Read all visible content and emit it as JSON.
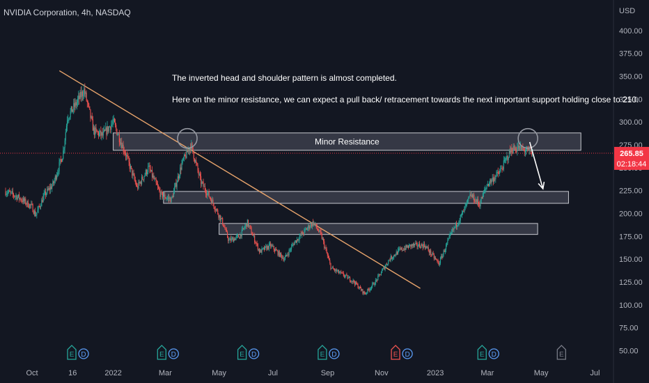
{
  "header": {
    "title": "NVIDIA Corporation, 4h, NASDAQ",
    "currency": "USD"
  },
  "price_label": {
    "value": "265.85",
    "countdown": "02:18:44"
  },
  "annotations": {
    "line1": "The inverted head and shoulder pattern is almost completed.",
    "line2": "Here on the minor resistance, we can expect a pull back/ retracement towards the next important support holding close to 210.",
    "zone_label": "Minor Resistance"
  },
  "event_markers": [
    {
      "date": "2021-11-15",
      "icons": [
        "E",
        "D"
      ],
      "color": "#26a69a"
    },
    {
      "date": "2022-02-25",
      "icons": [
        "E",
        "D"
      ],
      "color": "#26a69a"
    },
    {
      "date": "2022-05-27",
      "icons": [
        "E",
        "D"
      ],
      "color": "#26a69a"
    },
    {
      "date": "2022-08-26",
      "icons": [
        "E",
        "D"
      ],
      "color": "#26a69a"
    },
    {
      "date": "2022-11-17",
      "icons": [
        "E",
        "D"
      ],
      "color": "#ef5350"
    },
    {
      "date": "2023-02-23",
      "icons": [
        "E",
        "D"
      ],
      "color": "#26a69a"
    },
    {
      "date": "2023-05-24",
      "icons": [
        "E"
      ],
      "color": "#787b86"
    }
  ],
  "colors": {
    "background": "#131722",
    "up": "#26a69a",
    "down": "#ef5350",
    "trendline": "#e8a46c",
    "zone_fill": "#4a4e5a",
    "text": "#d1d4dc",
    "axis_text": "#b2b5be",
    "price_tag": "#f23645"
  },
  "chart_data": {
    "type": "candlestick",
    "y_axis_ticks": [
      "400.00",
      "375.00",
      "350.00",
      "325.00",
      "300.00",
      "275.00",
      "250.00",
      "225.00",
      "200.00",
      "175.00",
      "150.00",
      "125.00",
      "100.00",
      "75.00",
      "50.00"
    ],
    "x_axis_ticks": [
      {
        "label": "Oct",
        "date": "2021-10-01"
      },
      {
        "label": "16",
        "date": "2021-11-16"
      },
      {
        "label": "2022",
        "date": "2022-01-01"
      },
      {
        "label": "Mar",
        "date": "2022-03-01"
      },
      {
        "label": "May",
        "date": "2022-05-01"
      },
      {
        "label": "Jul",
        "date": "2022-07-01"
      },
      {
        "label": "Sep",
        "date": "2022-09-01"
      },
      {
        "label": "Nov",
        "date": "2022-11-01"
      },
      {
        "label": "2023",
        "date": "2023-01-01"
      },
      {
        "label": "Mar",
        "date": "2023-03-01"
      },
      {
        "label": "May",
        "date": "2023-05-01"
      },
      {
        "label": "Jul",
        "date": "2023-07-01"
      }
    ],
    "ylim": [
      45,
      412
    ],
    "x_range": [
      "2021-09-01",
      "2023-07-18"
    ],
    "current_price": 265.85,
    "price_path": [
      [
        "2021-09-01",
        224
      ],
      [
        "2021-09-15",
        218
      ],
      [
        "2021-10-01",
        207
      ],
      [
        "2021-10-05",
        198
      ],
      [
        "2021-10-15",
        220
      ],
      [
        "2021-10-25",
        232
      ],
      [
        "2021-11-05",
        265
      ],
      [
        "2021-11-10",
        305
      ],
      [
        "2021-11-20",
        320
      ],
      [
        "2021-11-29",
        335
      ],
      [
        "2021-12-10",
        290
      ],
      [
        "2021-12-20",
        285
      ],
      [
        "2022-01-01",
        300
      ],
      [
        "2022-01-15",
        265
      ],
      [
        "2022-01-28",
        228
      ],
      [
        "2022-02-10",
        250
      ],
      [
        "2022-02-24",
        220
      ],
      [
        "2022-03-08",
        215
      ],
      [
        "2022-03-20",
        255
      ],
      [
        "2022-03-30",
        275
      ],
      [
        "2022-04-10",
        235
      ],
      [
        "2022-04-22",
        215
      ],
      [
        "2022-05-05",
        190
      ],
      [
        "2022-05-12",
        170
      ],
      [
        "2022-05-24",
        175
      ],
      [
        "2022-06-02",
        190
      ],
      [
        "2022-06-16",
        158
      ],
      [
        "2022-06-28",
        165
      ],
      [
        "2022-07-14",
        150
      ],
      [
        "2022-07-25",
        168
      ],
      [
        "2022-08-10",
        185
      ],
      [
        "2022-08-16",
        190
      ],
      [
        "2022-08-25",
        175
      ],
      [
        "2022-09-05",
        140
      ],
      [
        "2022-09-20",
        132
      ],
      [
        "2022-10-01",
        125
      ],
      [
        "2022-10-13",
        112
      ],
      [
        "2022-10-25",
        125
      ],
      [
        "2022-11-10",
        150
      ],
      [
        "2022-11-22",
        160
      ],
      [
        "2022-12-05",
        165
      ],
      [
        "2022-12-20",
        165
      ],
      [
        "2023-01-05",
        145
      ],
      [
        "2023-01-20",
        180
      ],
      [
        "2023-02-01",
        200
      ],
      [
        "2023-02-10",
        220
      ],
      [
        "2023-02-20",
        210
      ],
      [
        "2023-03-01",
        232
      ],
      [
        "2023-03-15",
        245
      ],
      [
        "2023-03-28",
        270
      ],
      [
        "2023-04-05",
        272
      ],
      [
        "2023-04-15",
        268
      ],
      [
        "2023-04-22",
        265.85
      ]
    ],
    "zones": [
      {
        "name": "Minor Resistance",
        "from": "2022-01-01",
        "to": "2023-06-15",
        "low": 269,
        "high": 288
      },
      {
        "name": "support_210",
        "from": "2022-02-27",
        "to": "2023-06-01",
        "low": 211,
        "high": 224
      },
      {
        "name": "support_180",
        "from": "2022-05-01",
        "to": "2023-04-27",
        "low": 177,
        "high": 189
      }
    ],
    "trendline": [
      [
        "2021-11-01",
        356
      ],
      [
        "2022-12-15",
        118
      ]
    ],
    "circles": [
      {
        "date": "2022-03-26",
        "price": 282
      },
      {
        "date": "2023-04-16",
        "price": 282
      }
    ],
    "arrow": {
      "from": [
        "2023-04-18",
        278
      ],
      "to": [
        "2023-05-03",
        227
      ]
    }
  }
}
